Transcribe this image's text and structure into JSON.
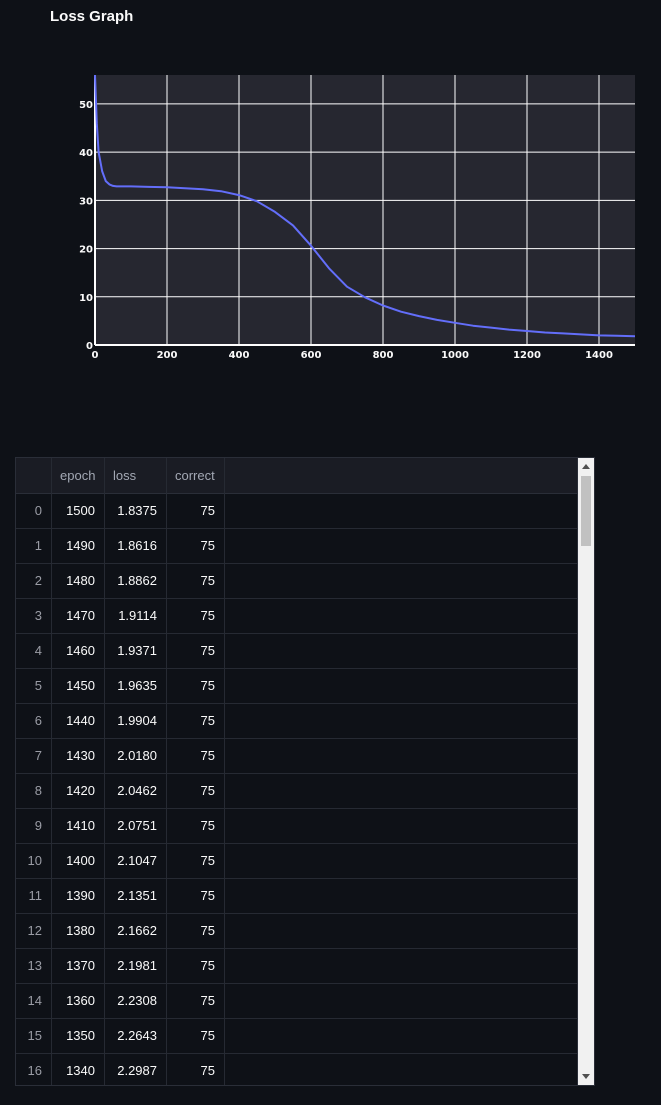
{
  "page": {
    "title": "Loss Graph"
  },
  "chart_data": {
    "type": "line",
    "title": "",
    "xlabel": "",
    "ylabel": "",
    "xlim": [
      0,
      1500
    ],
    "ylim": [
      0,
      56
    ],
    "xticks": [
      0,
      200,
      400,
      600,
      800,
      1000,
      1200,
      1400
    ],
    "yticks": [
      0,
      10,
      20,
      30,
      40,
      50
    ],
    "grid": true,
    "series": [
      {
        "color": "#636efa",
        "x": [
          0,
          5,
          10,
          20,
          30,
          40,
          50,
          60,
          80,
          100,
          150,
          200,
          250,
          300,
          350,
          400,
          450,
          500,
          550,
          600,
          650,
          700,
          750,
          800,
          850,
          900,
          950,
          1000,
          1050,
          1100,
          1150,
          1200,
          1250,
          1300,
          1350,
          1400,
          1450,
          1500
        ],
        "y": [
          56,
          46,
          40,
          36,
          34,
          33.3,
          33,
          32.9,
          32.9,
          32.9,
          32.8,
          32.7,
          32.5,
          32.3,
          31.9,
          31.1,
          29.8,
          27.6,
          24.8,
          20.6,
          15.9,
          12.1,
          9.9,
          8.2,
          6.9,
          6.0,
          5.2,
          4.6,
          4.0,
          3.6,
          3.2,
          2.9,
          2.6,
          2.4,
          2.2,
          2.0,
          1.9,
          1.8
        ]
      }
    ]
  },
  "table": {
    "columns": [
      "epoch",
      "loss",
      "correct"
    ],
    "rows": [
      {
        "idx": "0",
        "epoch": "1500",
        "loss": "1.8375",
        "correct": "75"
      },
      {
        "idx": "1",
        "epoch": "1490",
        "loss": "1.8616",
        "correct": "75"
      },
      {
        "idx": "2",
        "epoch": "1480",
        "loss": "1.8862",
        "correct": "75"
      },
      {
        "idx": "3",
        "epoch": "1470",
        "loss": "1.9114",
        "correct": "75"
      },
      {
        "idx": "4",
        "epoch": "1460",
        "loss": "1.9371",
        "correct": "75"
      },
      {
        "idx": "5",
        "epoch": "1450",
        "loss": "1.9635",
        "correct": "75"
      },
      {
        "idx": "6",
        "epoch": "1440",
        "loss": "1.9904",
        "correct": "75"
      },
      {
        "idx": "7",
        "epoch": "1430",
        "loss": "2.0180",
        "correct": "75"
      },
      {
        "idx": "8",
        "epoch": "1420",
        "loss": "2.0462",
        "correct": "75"
      },
      {
        "idx": "9",
        "epoch": "1410",
        "loss": "2.0751",
        "correct": "75"
      },
      {
        "idx": "10",
        "epoch": "1400",
        "loss": "2.1047",
        "correct": "75"
      },
      {
        "idx": "11",
        "epoch": "1390",
        "loss": "2.1351",
        "correct": "75"
      },
      {
        "idx": "12",
        "epoch": "1380",
        "loss": "2.1662",
        "correct": "75"
      },
      {
        "idx": "13",
        "epoch": "1370",
        "loss": "2.1981",
        "correct": "75"
      },
      {
        "idx": "14",
        "epoch": "1360",
        "loss": "2.2308",
        "correct": "75"
      },
      {
        "idx": "15",
        "epoch": "1350",
        "loss": "2.2643",
        "correct": "75"
      },
      {
        "idx": "16",
        "epoch": "1340",
        "loss": "2.2987",
        "correct": "75"
      }
    ]
  }
}
